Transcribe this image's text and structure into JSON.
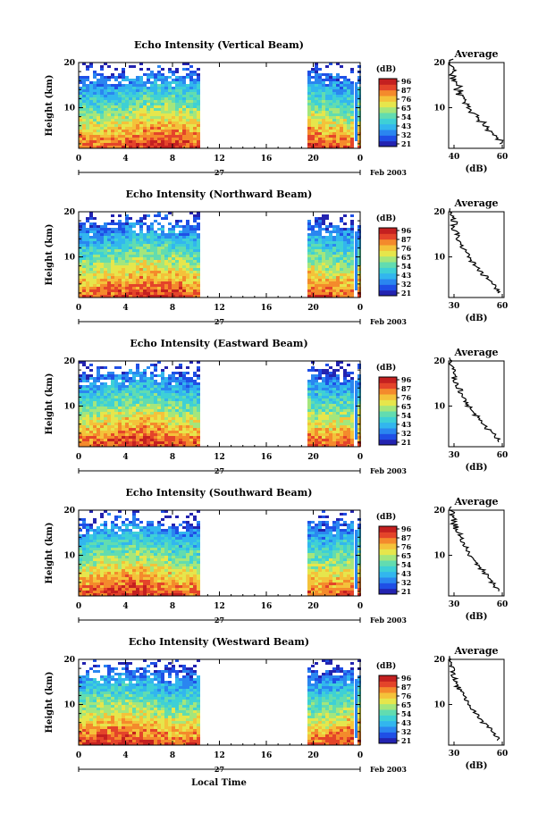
{
  "figure": {
    "date_label": "Feb 2003",
    "day_label": "27",
    "xlabel": "Local Time",
    "colorbar_unit": "(dB)",
    "colorbar_ticks": [
      "96",
      "87",
      "76",
      "65",
      "54",
      "43",
      "32",
      "21"
    ],
    "colormap": [
      "#2323b0",
      "#1f4fe6",
      "#2a86f0",
      "#32b6ee",
      "#3ed0d6",
      "#62dcb0",
      "#a4e67c",
      "#e6e64c",
      "#f4c23a",
      "#f48a2c",
      "#e4442a",
      "#c42020"
    ],
    "average_title": "Average",
    "average_xlabel": "(dB)"
  },
  "chart_data": [
    {
      "type": "heatmap",
      "title": "Echo Intensity (Vertical Beam)",
      "ylabel": "Height (km)",
      "xlim": [
        0,
        24
      ],
      "ylim": [
        1,
        20
      ],
      "x_ticks": [
        "0",
        "4",
        "8",
        "12",
        "16",
        "20",
        "0"
      ],
      "y_ticks": [
        "10",
        "20"
      ],
      "data_gap_hours": [
        10.5,
        19.4
      ],
      "profile": {
        "title": "Average",
        "xlabel": "(dB)",
        "xlim": [
          40,
          60
        ],
        "x_ticks": [
          "40",
          "60"
        ],
        "y_ticks": [
          "10",
          "20"
        ],
        "height_km": [
          2,
          3,
          4,
          5,
          6,
          7,
          8,
          9,
          10,
          11,
          12,
          13,
          14,
          15,
          16,
          17,
          18,
          19,
          20
        ],
        "db": [
          59,
          57,
          56,
          54,
          53,
          51,
          50,
          48,
          47,
          46,
          45,
          44,
          43,
          42,
          42,
          41,
          41,
          40,
          40
        ]
      }
    },
    {
      "type": "heatmap",
      "title": "Echo Intensity (Northward Beam)",
      "ylabel": "Height (km)",
      "xlim": [
        0,
        24
      ],
      "ylim": [
        1,
        20
      ],
      "x_ticks": [
        "0",
        "4",
        "8",
        "12",
        "16",
        "20",
        "0"
      ],
      "y_ticks": [
        "10",
        "20"
      ],
      "data_gap_hours": [
        10.5,
        19.4
      ],
      "profile": {
        "title": "Average",
        "xlabel": "(dB)",
        "xlim": [
          30,
          60
        ],
        "x_ticks": [
          "30",
          "60"
        ],
        "y_ticks": [
          "10",
          "20"
        ],
        "height_km": [
          2,
          3,
          4,
          5,
          6,
          7,
          8,
          9,
          10,
          11,
          12,
          13,
          14,
          15,
          16,
          17,
          18,
          19,
          20
        ],
        "db": [
          57,
          55,
          53,
          51,
          48,
          46,
          44,
          42,
          41,
          39,
          37,
          36,
          35,
          34,
          33,
          33,
          32,
          32,
          31
        ]
      }
    },
    {
      "type": "heatmap",
      "title": "Echo Intensity (Eastward Beam)",
      "ylabel": "Height (km)",
      "xlim": [
        0,
        24
      ],
      "ylim": [
        1,
        20
      ],
      "x_ticks": [
        "0",
        "4",
        "8",
        "12",
        "16",
        "20",
        "0"
      ],
      "y_ticks": [
        "10",
        "20"
      ],
      "data_gap_hours": [
        10.5,
        19.4
      ],
      "profile": {
        "title": "Average",
        "xlabel": "(dB)",
        "xlim": [
          30,
          60
        ],
        "x_ticks": [
          "30",
          "60"
        ],
        "y_ticks": [
          "10",
          "20"
        ],
        "height_km": [
          2,
          3,
          4,
          5,
          6,
          7,
          8,
          9,
          10,
          11,
          12,
          13,
          14,
          15,
          16,
          17,
          18,
          19,
          20
        ],
        "db": [
          57,
          55,
          53,
          50,
          48,
          46,
          44,
          42,
          40,
          39,
          37,
          36,
          35,
          34,
          33,
          32,
          32,
          31,
          31
        ]
      }
    },
    {
      "type": "heatmap",
      "title": "Echo Intensity (Southward Beam)",
      "ylabel": "Height (km)",
      "xlim": [
        0,
        24
      ],
      "ylim": [
        1,
        20
      ],
      "x_ticks": [
        "0",
        "4",
        "8",
        "12",
        "16",
        "20",
        "0"
      ],
      "y_ticks": [
        "10",
        "20"
      ],
      "data_gap_hours": [
        10.5,
        19.4
      ],
      "profile": {
        "title": "Average",
        "xlabel": "(dB)",
        "xlim": [
          30,
          60
        ],
        "x_ticks": [
          "30",
          "60"
        ],
        "y_ticks": [
          "10",
          "20"
        ],
        "height_km": [
          2,
          3,
          4,
          5,
          6,
          7,
          8,
          9,
          10,
          11,
          12,
          13,
          14,
          15,
          16,
          17,
          18,
          19,
          20
        ],
        "db": [
          57,
          55,
          53,
          51,
          49,
          47,
          45,
          43,
          41,
          40,
          38,
          37,
          36,
          35,
          34,
          33,
          33,
          32,
          31
        ]
      }
    },
    {
      "type": "heatmap",
      "title": "Echo Intensity (Westward Beam)",
      "ylabel": "Height (km)",
      "xlim": [
        0,
        24
      ],
      "ylim": [
        1,
        20
      ],
      "x_ticks": [
        "0",
        "4",
        "8",
        "12",
        "16",
        "20",
        "0"
      ],
      "y_ticks": [
        "10",
        "20"
      ],
      "data_gap_hours": [
        10.5,
        19.4
      ],
      "profile": {
        "title": "Average",
        "xlabel": "(dB)",
        "xlim": [
          30,
          60
        ],
        "x_ticks": [
          "30",
          "60"
        ],
        "y_ticks": [
          "10",
          "20"
        ],
        "height_km": [
          2,
          3,
          4,
          5,
          6,
          7,
          8,
          9,
          10,
          11,
          12,
          13,
          14,
          15,
          16,
          17,
          18,
          19,
          20
        ],
        "db": [
          57,
          55,
          53,
          51,
          48,
          46,
          44,
          42,
          41,
          39,
          38,
          36,
          35,
          34,
          33,
          32,
          32,
          31,
          31
        ]
      }
    }
  ]
}
